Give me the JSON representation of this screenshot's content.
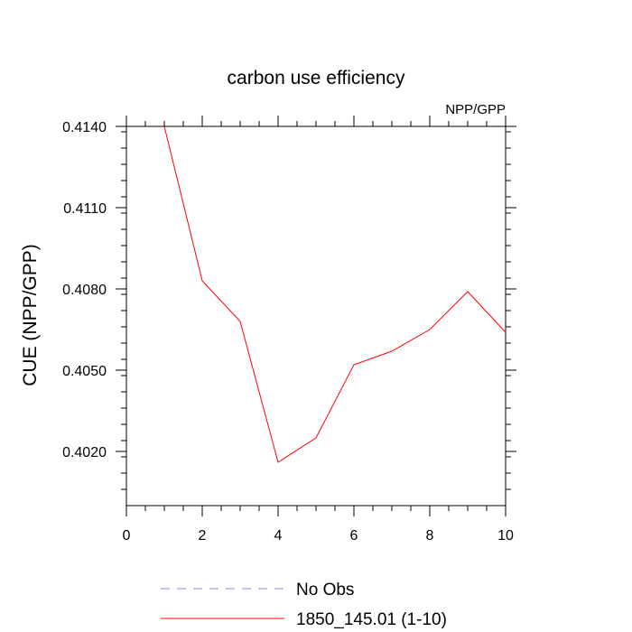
{
  "chart_data": {
    "type": "line",
    "title": "carbon use efficiency",
    "subtitle": "NPP/GPP",
    "ylabel": "CUE  (NPP/GPP)",
    "xlabel": "",
    "xlim": [
      0,
      10
    ],
    "ylim": [
      0.4,
      0.414
    ],
    "x_ticks": [
      0,
      2,
      4,
      6,
      8,
      10
    ],
    "x_tick_labels": [
      "0",
      "2",
      "4",
      "6",
      "8",
      "10"
    ],
    "y_ticks": [
      0.402,
      0.405,
      0.408,
      0.411,
      0.414
    ],
    "y_tick_labels": [
      "0.4020",
      "0.4050",
      "0.4080",
      "0.4110",
      "0.4140"
    ],
    "grid": false,
    "legend_placement": "bottom-left, below plot",
    "series": [
      {
        "name": "No Obs",
        "color": "#8888ff",
        "style": "dashed",
        "x": [],
        "values": []
      },
      {
        "name": "1850_145.01 (1-10)",
        "color": "#ff0000",
        "style": "solid",
        "x": [
          1,
          2,
          3,
          4,
          5,
          6,
          7,
          8,
          9,
          10
        ],
        "values": [
          0.414,
          0.4083,
          0.4068,
          0.4016,
          0.4025,
          0.4052,
          0.4057,
          0.4065,
          0.4079,
          0.4064
        ]
      }
    ]
  }
}
